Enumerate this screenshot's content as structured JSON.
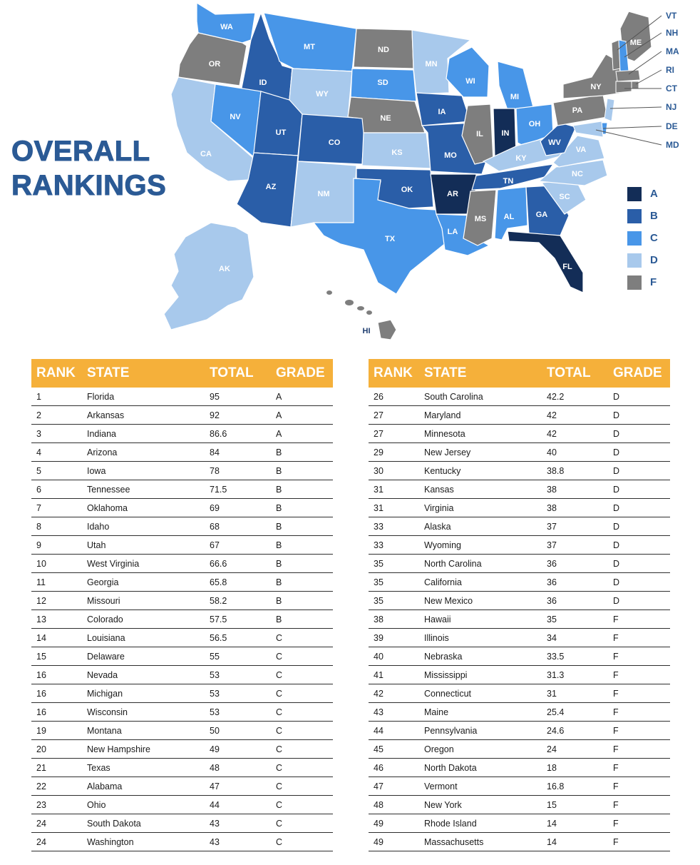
{
  "title": {
    "line1": "OVERALL",
    "line2": "RANKINGS"
  },
  "colors": {
    "A": "#132d57",
    "B": "#2a5ea8",
    "C": "#4896e8",
    "D": "#a8c9ec",
    "F": "#7e7e7e",
    "accent": "#f5b03a",
    "title": "#2b5a95"
  },
  "legend": [
    {
      "grade": "A",
      "label": "A"
    },
    {
      "grade": "B",
      "label": "B"
    },
    {
      "grade": "C",
      "label": "C"
    },
    {
      "grade": "D",
      "label": "D"
    },
    {
      "grade": "F",
      "label": "F"
    }
  ],
  "map": {
    "states": [
      {
        "abbr": "WA",
        "grade": "C"
      },
      {
        "abbr": "OR",
        "grade": "F"
      },
      {
        "abbr": "CA",
        "grade": "D"
      },
      {
        "abbr": "ID",
        "grade": "B"
      },
      {
        "abbr": "NV",
        "grade": "C"
      },
      {
        "abbr": "MT",
        "grade": "C"
      },
      {
        "abbr": "WY",
        "grade": "D"
      },
      {
        "abbr": "UT",
        "grade": "B"
      },
      {
        "abbr": "AZ",
        "grade": "B"
      },
      {
        "abbr": "CO",
        "grade": "B"
      },
      {
        "abbr": "NM",
        "grade": "D"
      },
      {
        "abbr": "ND",
        "grade": "F"
      },
      {
        "abbr": "SD",
        "grade": "C"
      },
      {
        "abbr": "NE",
        "grade": "F"
      },
      {
        "abbr": "KS",
        "grade": "D"
      },
      {
        "abbr": "OK",
        "grade": "B"
      },
      {
        "abbr": "TX",
        "grade": "C"
      },
      {
        "abbr": "MN",
        "grade": "D"
      },
      {
        "abbr": "IA",
        "grade": "B"
      },
      {
        "abbr": "MO",
        "grade": "B"
      },
      {
        "abbr": "AR",
        "grade": "A"
      },
      {
        "abbr": "LA",
        "grade": "C"
      },
      {
        "abbr": "WI",
        "grade": "C"
      },
      {
        "abbr": "IL",
        "grade": "F"
      },
      {
        "abbr": "MI",
        "grade": "C"
      },
      {
        "abbr": "IN",
        "grade": "A"
      },
      {
        "abbr": "OH",
        "grade": "C"
      },
      {
        "abbr": "KY",
        "grade": "D"
      },
      {
        "abbr": "TN",
        "grade": "B"
      },
      {
        "abbr": "MS",
        "grade": "F"
      },
      {
        "abbr": "AL",
        "grade": "C"
      },
      {
        "abbr": "GA",
        "grade": "B"
      },
      {
        "abbr": "FL",
        "grade": "A"
      },
      {
        "abbr": "SC",
        "grade": "D"
      },
      {
        "abbr": "NC",
        "grade": "D"
      },
      {
        "abbr": "VA",
        "grade": "D"
      },
      {
        "abbr": "WV",
        "grade": "B"
      },
      {
        "abbr": "PA",
        "grade": "F"
      },
      {
        "abbr": "NY",
        "grade": "F"
      },
      {
        "abbr": "ME",
        "grade": "F"
      },
      {
        "abbr": "AK",
        "grade": "D"
      },
      {
        "abbr": "HI",
        "grade": "F"
      }
    ],
    "northeast_labels": [
      "VT",
      "NH",
      "MA",
      "RI",
      "CT",
      "NJ",
      "DE",
      "MD"
    ]
  },
  "table_headers": {
    "rank": "RANK",
    "state": "STATE",
    "total": "TOTAL",
    "grade": "GRADE"
  },
  "left_table": [
    {
      "rank": "1",
      "state": "Florida",
      "total": "95",
      "grade": "A"
    },
    {
      "rank": "2",
      "state": "Arkansas",
      "total": "92",
      "grade": "A"
    },
    {
      "rank": "3",
      "state": "Indiana",
      "total": "86.6",
      "grade": "A"
    },
    {
      "rank": "4",
      "state": "Arizona",
      "total": "84",
      "grade": "B"
    },
    {
      "rank": "5",
      "state": "Iowa",
      "total": "78",
      "grade": "B"
    },
    {
      "rank": "6",
      "state": "Tennessee",
      "total": "71.5",
      "grade": "B"
    },
    {
      "rank": "7",
      "state": "Oklahoma",
      "total": "69",
      "grade": "B"
    },
    {
      "rank": "8",
      "state": "Idaho",
      "total": "68",
      "grade": "B"
    },
    {
      "rank": "9",
      "state": "Utah",
      "total": "67",
      "grade": "B"
    },
    {
      "rank": "10",
      "state": "West Virginia",
      "total": "66.6",
      "grade": "B"
    },
    {
      "rank": "11",
      "state": "Georgia",
      "total": "65.8",
      "grade": "B"
    },
    {
      "rank": "12",
      "state": "Missouri",
      "total": "58.2",
      "grade": "B"
    },
    {
      "rank": "13",
      "state": "Colorado",
      "total": "57.5",
      "grade": "B"
    },
    {
      "rank": "14",
      "state": "Louisiana",
      "total": "56.5",
      "grade": "C"
    },
    {
      "rank": "15",
      "state": "Delaware",
      "total": "55",
      "grade": "C"
    },
    {
      "rank": "16",
      "state": "Nevada",
      "total": "53",
      "grade": "C"
    },
    {
      "rank": "16",
      "state": "Michigan",
      "total": "53",
      "grade": "C"
    },
    {
      "rank": "16",
      "state": "Wisconsin",
      "total": "53",
      "grade": "C"
    },
    {
      "rank": "19",
      "state": "Montana",
      "total": "50",
      "grade": "C"
    },
    {
      "rank": "20",
      "state": "New Hampshire",
      "total": "49",
      "grade": "C"
    },
    {
      "rank": "21",
      "state": "Texas",
      "total": "48",
      "grade": "C"
    },
    {
      "rank": "22",
      "state": "Alabama",
      "total": "47",
      "grade": "C"
    },
    {
      "rank": "23",
      "state": "Ohio",
      "total": "44",
      "grade": "C"
    },
    {
      "rank": "24",
      "state": "South Dakota",
      "total": "43",
      "grade": "C"
    },
    {
      "rank": "24",
      "state": "Washington",
      "total": "43",
      "grade": "C"
    }
  ],
  "right_table": [
    {
      "rank": "26",
      "state": "South Carolina",
      "total": "42.2",
      "grade": "D"
    },
    {
      "rank": "27",
      "state": "Maryland",
      "total": "42",
      "grade": "D"
    },
    {
      "rank": "27",
      "state": "Minnesota",
      "total": "42",
      "grade": "D"
    },
    {
      "rank": "29",
      "state": "New Jersey",
      "total": "40",
      "grade": "D"
    },
    {
      "rank": "30",
      "state": "Kentucky",
      "total": "38.8",
      "grade": "D"
    },
    {
      "rank": "31",
      "state": "Kansas",
      "total": "38",
      "grade": "D"
    },
    {
      "rank": "31",
      "state": "Virginia",
      "total": "38",
      "grade": "D"
    },
    {
      "rank": "33",
      "state": "Alaska",
      "total": "37",
      "grade": "D"
    },
    {
      "rank": "33",
      "state": "Wyoming",
      "total": "37",
      "grade": "D"
    },
    {
      "rank": "35",
      "state": "North Carolina",
      "total": "36",
      "grade": "D"
    },
    {
      "rank": "35",
      "state": "California",
      "total": "36",
      "grade": "D"
    },
    {
      "rank": "35",
      "state": "New Mexico",
      "total": "36",
      "grade": "D"
    },
    {
      "rank": "38",
      "state": "Hawaii",
      "total": "35",
      "grade": "F"
    },
    {
      "rank": "39",
      "state": "Illinois",
      "total": "34",
      "grade": "F"
    },
    {
      "rank": "40",
      "state": "Nebraska",
      "total": "33.5",
      "grade": "F"
    },
    {
      "rank": "41",
      "state": "Mississippi",
      "total": "31.3",
      "grade": "F"
    },
    {
      "rank": "42",
      "state": "Connecticut",
      "total": "31",
      "grade": "F"
    },
    {
      "rank": "43",
      "state": "Maine",
      "total": "25.4",
      "grade": "F"
    },
    {
      "rank": "44",
      "state": "Pennsylvania",
      "total": "24.6",
      "grade": "F"
    },
    {
      "rank": "45",
      "state": "Oregon",
      "total": "24",
      "grade": "F"
    },
    {
      "rank": "46",
      "state": "North Dakota",
      "total": "18",
      "grade": "F"
    },
    {
      "rank": "47",
      "state": "Vermont",
      "total": "16.8",
      "grade": "F"
    },
    {
      "rank": "48",
      "state": "New York",
      "total": "15",
      "grade": "F"
    },
    {
      "rank": "49",
      "state": "Rhode Island",
      "total": "14",
      "grade": "F"
    },
    {
      "rank": "49",
      "state": "Massachusetts",
      "total": "14",
      "grade": "F"
    }
  ]
}
